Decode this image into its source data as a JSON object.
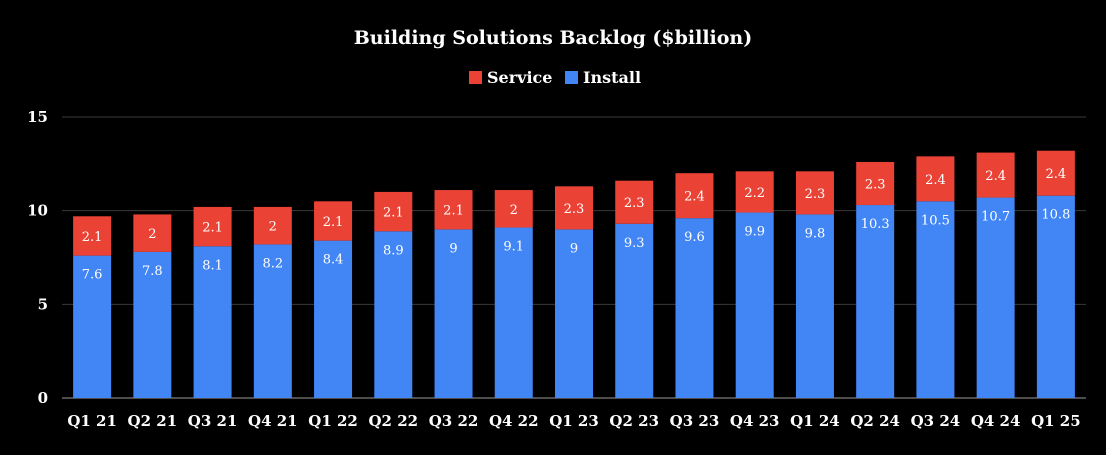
{
  "chart_data": {
    "type": "bar",
    "stacked": true,
    "title": "Building Solutions Backlog ($billion)",
    "categories": [
      "Q1 21",
      "Q2 21",
      "Q3 21",
      "Q4 21",
      "Q1 22",
      "Q2 22",
      "Q3 22",
      "Q4 22",
      "Q1 23",
      "Q2 23",
      "Q3 23",
      "Q4 23",
      "Q1 24",
      "Q2 24",
      "Q3 24",
      "Q4 24",
      "Q1 25"
    ],
    "series": [
      {
        "name": "Install",
        "color": "#4285f4",
        "values": [
          7.6,
          7.8,
          8.1,
          8.2,
          8.4,
          8.9,
          9,
          9.1,
          9,
          9.3,
          9.6,
          9.9,
          9.8,
          10.3,
          10.5,
          10.7,
          10.8
        ]
      },
      {
        "name": "Service",
        "color": "#ea4335",
        "values": [
          2.1,
          2,
          2.1,
          2,
          2.1,
          2.1,
          2.1,
          2,
          2.3,
          2.3,
          2.4,
          2.2,
          2.3,
          2.3,
          2.4,
          2.4,
          2.4
        ]
      }
    ],
    "legend": [
      {
        "label": "Service",
        "color": "#ea4335"
      },
      {
        "label": "Install",
        "color": "#4285f4"
      }
    ],
    "legend_position": "top",
    "ylim": [
      0,
      15
    ],
    "yticks": [
      "0",
      "5",
      "10",
      "15"
    ],
    "grid": true,
    "background": "#000000"
  }
}
